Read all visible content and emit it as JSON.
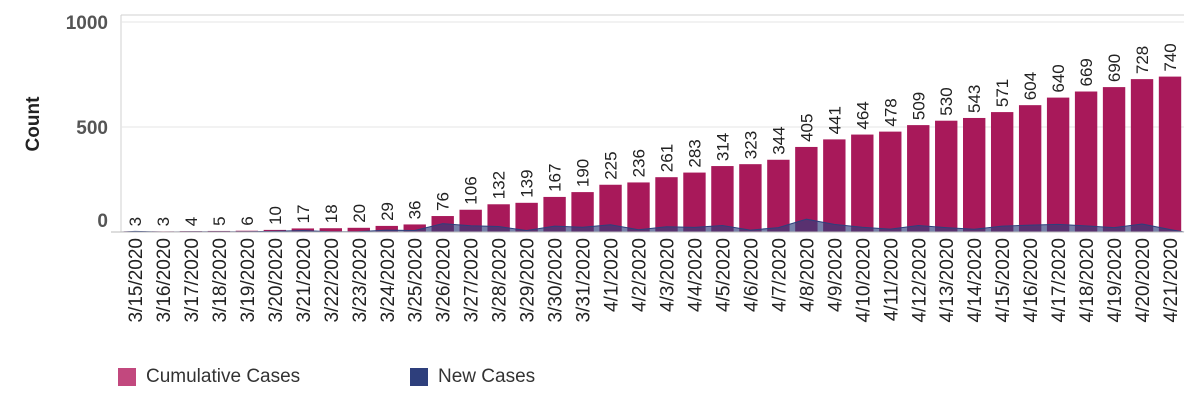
{
  "chart_data": {
    "type": "bar",
    "ylabel": "Count",
    "yticks": [
      1000,
      500,
      0
    ],
    "ylim": [
      0,
      1000
    ],
    "grid": true,
    "legend_position": "bottom-left",
    "categories": [
      "3/15/2020",
      "3/16/2020",
      "3/17/2020",
      "3/18/2020",
      "3/19/2020",
      "3/20/2020",
      "3/21/2020",
      "3/22/2020",
      "3/23/2020",
      "3/24/2020",
      "3/25/2020",
      "3/26/2020",
      "3/27/2020",
      "3/28/2020",
      "3/29/2020",
      "3/30/2020",
      "3/31/2020",
      "4/1/2020",
      "4/2/2020",
      "4/3/2020",
      "4/4/2020",
      "4/5/2020",
      "4/6/2020",
      "4/7/2020",
      "4/8/2020",
      "4/9/2020",
      "4/10/2020",
      "4/11/2020",
      "4/12/2020",
      "4/13/2020",
      "4/14/2020",
      "4/15/2020",
      "4/16/2020",
      "4/17/2020",
      "4/18/2020",
      "4/19/2020",
      "4/20/2020",
      "4/21/2020"
    ],
    "series": [
      {
        "name": "Cumulative Cases",
        "kind": "bar",
        "color": "#A8195A",
        "legend_color": "#C2487E",
        "values": [
          3,
          3,
          4,
          5,
          6,
          10,
          17,
          18,
          20,
          29,
          36,
          76,
          106,
          132,
          139,
          167,
          190,
          225,
          236,
          261,
          283,
          314,
          323,
          344,
          405,
          441,
          464,
          478,
          509,
          530,
          543,
          571,
          604,
          640,
          669,
          690,
          728,
          740
        ]
      },
      {
        "name": "New Cases",
        "kind": "area",
        "color": "#2E3F7C",
        "values": [
          3,
          0,
          1,
          1,
          1,
          4,
          7,
          1,
          2,
          9,
          7,
          40,
          30,
          26,
          7,
          28,
          23,
          35,
          11,
          25,
          22,
          31,
          9,
          21,
          61,
          36,
          23,
          14,
          31,
          21,
          13,
          28,
          33,
          36,
          29,
          21,
          38,
          12
        ]
      }
    ]
  }
}
